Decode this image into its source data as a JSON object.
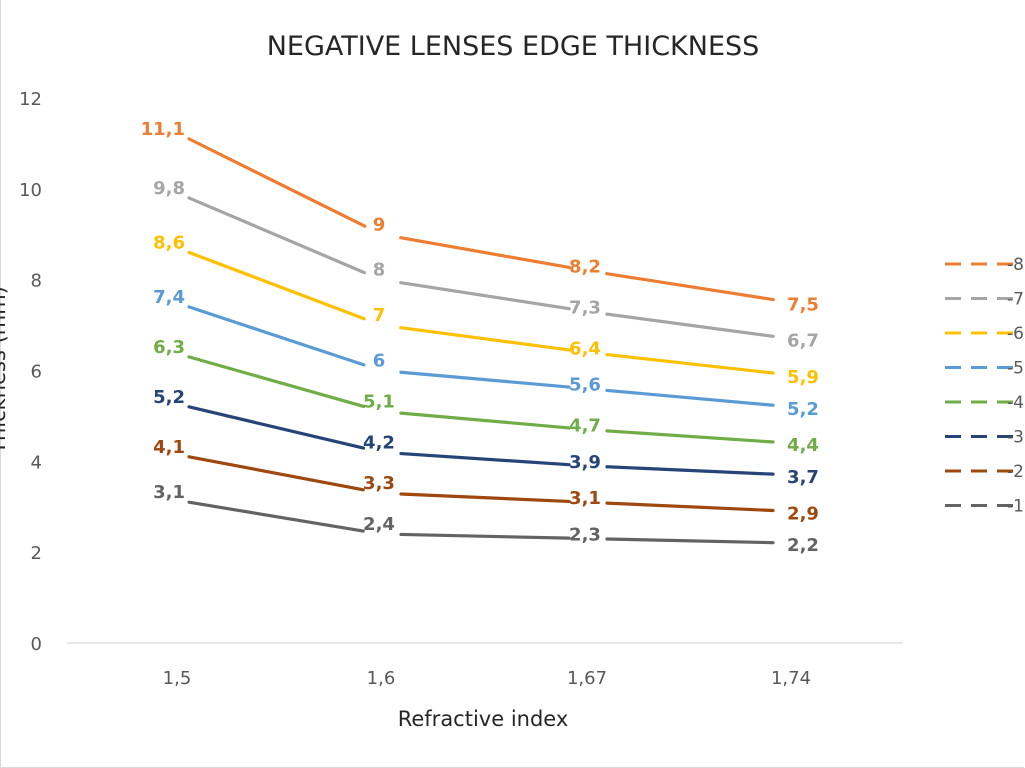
{
  "chart_data": {
    "type": "line",
    "title": "NEGATIVE LENSES EDGE THICKNESS",
    "xlabel": "Refractive index",
    "ylabel": "Thickness (mm)",
    "categories": [
      "1,5",
      "1,6",
      "1,67",
      "1,74"
    ],
    "ylim": [
      0,
      12
    ],
    "yticks": [
      "0",
      "2",
      "4",
      "6",
      "8",
      "10",
      "12"
    ],
    "legend_position": "right",
    "series": [
      {
        "name": "-8",
        "color": "#ED7D31",
        "values": [
          11.1,
          9,
          8.2,
          7.5
        ],
        "labels": [
          "11,1",
          "9",
          "8,2",
          "7,5"
        ]
      },
      {
        "name": "-7",
        "color": "#A5A5A5",
        "values": [
          9.8,
          8,
          7.3,
          6.7
        ],
        "labels": [
          "9,8",
          "8",
          "7,3",
          "6,7"
        ]
      },
      {
        "name": "-6",
        "color": "#FFC000",
        "values": [
          8.6,
          7,
          6.4,
          5.9
        ],
        "labels": [
          "8,6",
          "7",
          "6,4",
          "5,9"
        ]
      },
      {
        "name": "-5",
        "color": "#5B9BD5",
        "values": [
          7.4,
          6,
          5.6,
          5.2
        ],
        "labels": [
          "7,4",
          "6",
          "5,6",
          "5,2"
        ]
      },
      {
        "name": "-4",
        "color": "#70AD47",
        "values": [
          6.3,
          5.1,
          4.7,
          4.4
        ],
        "labels": [
          "6,3",
          "5,1",
          "4,7",
          "4,4"
        ]
      },
      {
        "name": "-3",
        "color": "#264478",
        "values": [
          5.2,
          4.2,
          3.9,
          3.7
        ],
        "labels": [
          "5,2",
          "4,2",
          "3,9",
          "3,7"
        ]
      },
      {
        "name": "-2",
        "color": "#9E480E",
        "values": [
          4.1,
          3.3,
          3.1,
          2.9
        ],
        "labels": [
          "4,1",
          "3,3",
          "3,1",
          "2,9"
        ]
      },
      {
        "name": "-1",
        "color": "#636363",
        "values": [
          3.1,
          2.4,
          2.3,
          2.2
        ],
        "labels": [
          "3,1",
          "2,4",
          "2,3",
          "2,2"
        ]
      }
    ]
  }
}
